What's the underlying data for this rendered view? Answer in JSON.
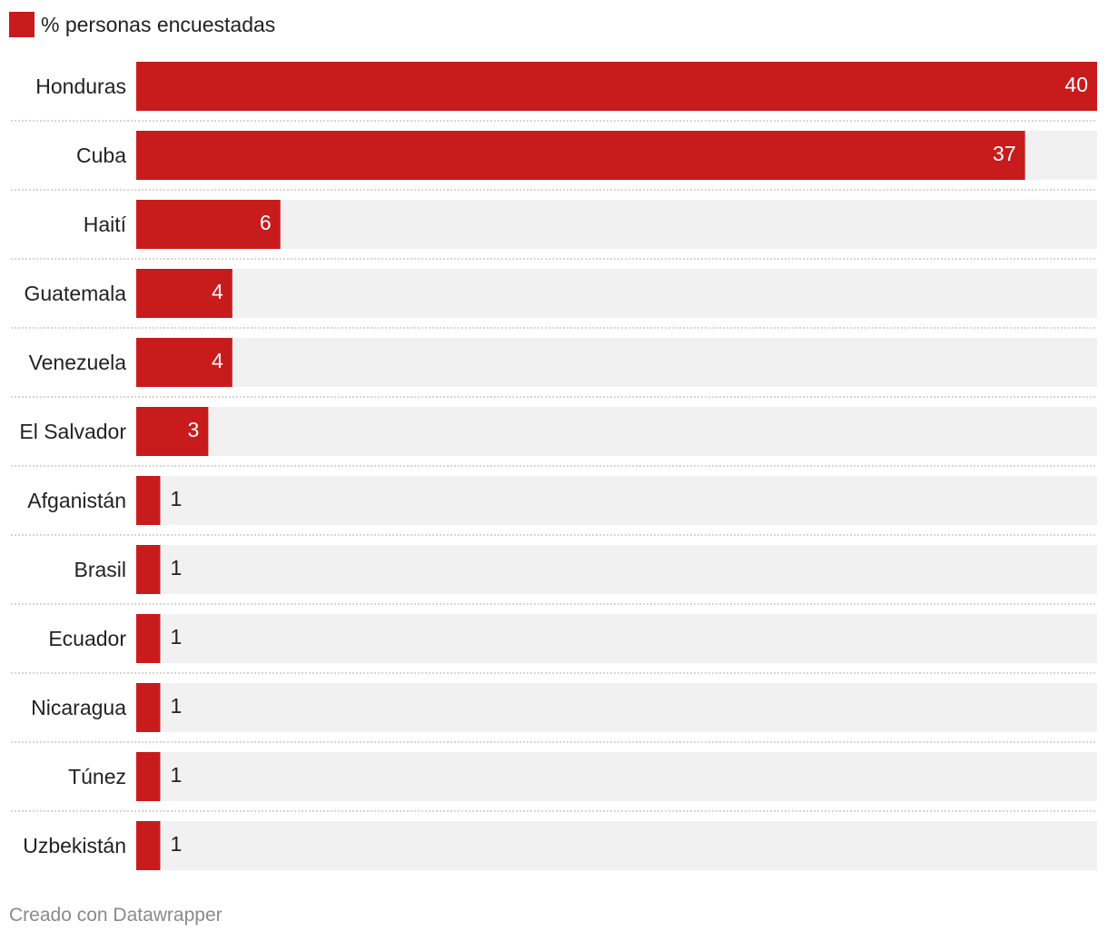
{
  "legend": {
    "label": "% personas encuestadas",
    "color": "#c81b1c"
  },
  "chart_data": {
    "type": "bar",
    "orientation": "horizontal",
    "categories": [
      "Honduras",
      "Cuba",
      "Haití",
      "Guatemala",
      "Venezuela",
      "El Salvador",
      "Afganistán",
      "Brasil",
      "Ecuador",
      "Nicaragua",
      "Túnez",
      "Uzbekistán"
    ],
    "series": [
      {
        "name": "% personas encuestadas",
        "values": [
          40,
          37,
          6,
          4,
          4,
          3,
          1,
          1,
          1,
          1,
          1,
          1
        ]
      }
    ],
    "xlim": [
      0,
      40
    ],
    "bar_color": "#c81b1c",
    "track_color": "#f1f1f1",
    "separator_style": "dotted",
    "data_labels": true,
    "grid": false
  },
  "footer": {
    "credit": "Creado con Datawrapper"
  }
}
